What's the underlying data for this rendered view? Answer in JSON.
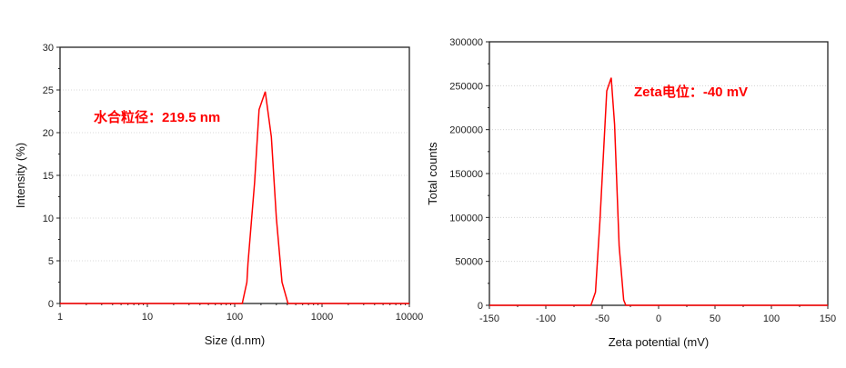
{
  "chart_data": [
    {
      "type": "line",
      "xlabel": "Size (d.nm)",
      "ylabel": "Intensity (%)",
      "xscale": "log",
      "xlim": [
        1,
        10000
      ],
      "ylim": [
        0,
        30
      ],
      "xticks": [
        "1",
        "10",
        "100",
        "1000",
        "10000"
      ],
      "yticks": [
        "0",
        "5",
        "10",
        "15",
        "20",
        "25",
        "30"
      ],
      "grid": true,
      "annotation": "水合粒径：219.5 nm",
      "color": "#ff0000",
      "x": [
        1,
        122,
        138,
        142,
        169,
        190,
        224,
        263,
        300,
        348,
        408,
        10000
      ],
      "y": [
        0,
        0,
        2.5,
        4.7,
        14.2,
        22.7,
        24.8,
        19.5,
        10,
        2.5,
        0,
        0
      ]
    },
    {
      "type": "line",
      "xlabel": "Zeta potential (mV)",
      "ylabel": "Total counts",
      "xlim": [
        -150,
        150
      ],
      "ylim": [
        0,
        300000
      ],
      "xticks": [
        "-150",
        "-100",
        "-50",
        "0",
        "50",
        "100",
        "150"
      ],
      "yticks": [
        "0",
        "50000",
        "100000",
        "150000",
        "200000",
        "250000",
        "300000"
      ],
      "grid": true,
      "annotation": "Zeta电位：-40 mV",
      "color": "#ff0000",
      "x": [
        -150,
        -60,
        -56,
        -52,
        -46,
        -42,
        -39,
        -35,
        -31,
        -29,
        150
      ],
      "y": [
        0,
        0,
        15000,
        96000,
        244000,
        259000,
        206000,
        68000,
        6000,
        0,
        0
      ]
    }
  ]
}
